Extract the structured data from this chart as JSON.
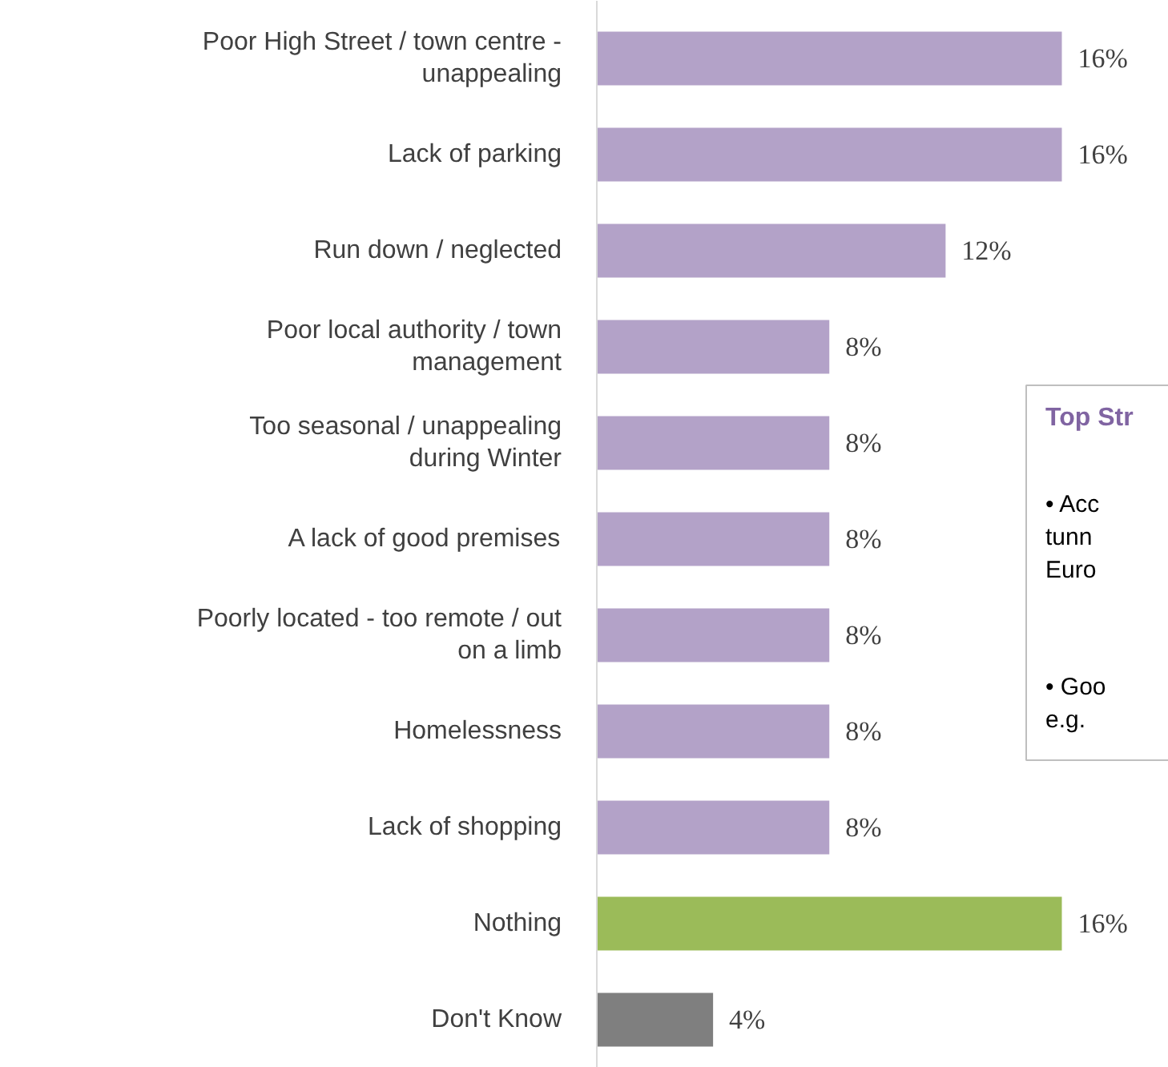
{
  "chart_data": {
    "type": "bar",
    "orientation": "horizontal",
    "categories": [
      "Poor High Street / town centre -\nunappealing",
      "Lack of parking",
      "Run down / neglected",
      "Poor local authority / town\nmanagement",
      "Too seasonal / unappealing\nduring Winter",
      "A lack of good premises",
      "Poorly located - too remote / out\non a limb",
      "Homelessness",
      "Lack of shopping",
      "Nothing",
      "Don't Know"
    ],
    "values": [
      16,
      16,
      12,
      8,
      8,
      8,
      8,
      8,
      8,
      16,
      4
    ],
    "value_labels": [
      "16%",
      "16%",
      "12%",
      "8%",
      "8%",
      "8%",
      "8%",
      "8%",
      "8%",
      "16%",
      "4%"
    ],
    "colors": [
      "#b3a2c8",
      "#b3a2c8",
      "#b3a2c8",
      "#b3a2c8",
      "#b3a2c8",
      "#b3a2c8",
      "#b3a2c8",
      "#b3a2c8",
      "#b3a2c8",
      "#9bbb59",
      "#7f7f7f"
    ],
    "annotations": [
      "Top Str",
      "• Acc\n   tunn\n   Euro",
      "• Goo\n   e.g."
    ]
  }
}
